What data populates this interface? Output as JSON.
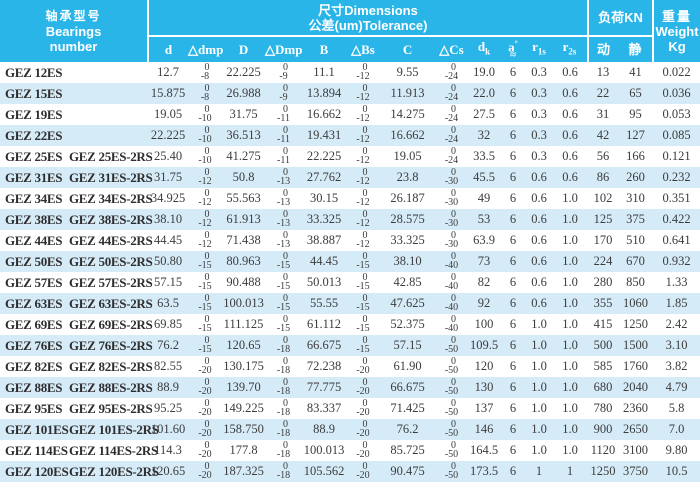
{
  "colors": {
    "header_bg": "#29b5e8",
    "row_alt_bg": "#d6ebf8",
    "text": "#3c3c3c",
    "header_text": "#ffffff"
  },
  "header": {
    "bearings": {
      "zh": "轴承型号",
      "en1": "Bearings",
      "en2": "number"
    },
    "dimensions": {
      "line1": "尺寸Dimensions",
      "line2": "公差(um)Tolerance)"
    },
    "load": {
      "label": "负荷KN",
      "dynamic": "动",
      "static": "静"
    },
    "weight": {
      "zh": "重量",
      "en": "Weight",
      "unit": "Kg"
    },
    "col_d": "d",
    "col_dmp": "△dmp",
    "col_D": "D",
    "col_Dmp": "△Dmp",
    "col_B": "B",
    "col_Bs": "△Bs",
    "col_C": "C",
    "col_Cs": "△Cs",
    "col_dk": {
      "base": "d",
      "sub": "k"
    },
    "col_a": {
      "base": "a",
      "sup": "°",
      "approx": "≈"
    },
    "col_r1s": {
      "base": "r",
      "sub": "1s"
    },
    "col_r2s": {
      "base": "r",
      "sub": "2s"
    }
  },
  "rows": [
    {
      "model": "GEZ 12ES",
      "model2": "",
      "d": "12.7",
      "dmp": [
        "0",
        "-8"
      ],
      "D": "22.225",
      "Dmp": [
        "0",
        "-9"
      ],
      "B": "11.1",
      "Bs": [
        "0",
        "-12"
      ],
      "C": "9.55",
      "Cs": [
        "0",
        "-24"
      ],
      "dk": "19.0",
      "a": "6",
      "r1s": "0.3",
      "r2s": "0.6",
      "load_dyn": "13",
      "load_stat": "41",
      "weight": "0.022"
    },
    {
      "model": "GEZ 15ES",
      "model2": "",
      "d": "15.875",
      "dmp": [
        "0",
        "-8"
      ],
      "D": "26.988",
      "Dmp": [
        "0",
        "-9"
      ],
      "B": "13.894",
      "Bs": [
        "0",
        "-12"
      ],
      "C": "11.913",
      "Cs": [
        "0",
        "-24"
      ],
      "dk": "22.0",
      "a": "6",
      "r1s": "0.3",
      "r2s": "0.6",
      "load_dyn": "22",
      "load_stat": "65",
      "weight": "0.036"
    },
    {
      "model": "GEZ 19ES",
      "model2": "",
      "d": "19.05",
      "dmp": [
        "0",
        "-10"
      ],
      "D": "31.75",
      "Dmp": [
        "0",
        "-11"
      ],
      "B": "16.662",
      "Bs": [
        "0",
        "-12"
      ],
      "C": "14.275",
      "Cs": [
        "0",
        "-24"
      ],
      "dk": "27.5",
      "a": "6",
      "r1s": "0.3",
      "r2s": "0.6",
      "load_dyn": "31",
      "load_stat": "95",
      "weight": "0.053"
    },
    {
      "model": "GEZ 22ES",
      "model2": "",
      "d": "22.225",
      "dmp": [
        "0",
        "-10"
      ],
      "D": "36.513",
      "Dmp": [
        "0",
        "-11"
      ],
      "B": "19.431",
      "Bs": [
        "0",
        "-12"
      ],
      "C": "16.662",
      "Cs": [
        "0",
        "-24"
      ],
      "dk": "32",
      "a": "6",
      "r1s": "0.3",
      "r2s": "0.6",
      "load_dyn": "42",
      "load_stat": "127",
      "weight": "0.085"
    },
    {
      "model": "GEZ 25ES",
      "model2": "GEZ 25ES-2RS",
      "d": "25.40",
      "dmp": [
        "0",
        "-10"
      ],
      "D": "41.275",
      "Dmp": [
        "0",
        "-11"
      ],
      "B": "22.225",
      "Bs": [
        "0",
        "-12"
      ],
      "C": "19.05",
      "Cs": [
        "0",
        "-24"
      ],
      "dk": "33.5",
      "a": "6",
      "r1s": "0.3",
      "r2s": "0.6",
      "load_dyn": "56",
      "load_stat": "166",
      "weight": "0.121"
    },
    {
      "model": "GEZ 31ES",
      "model2": "GEZ 31ES-2RS",
      "d": "31.75",
      "dmp": [
        "0",
        "-12"
      ],
      "D": "50.8",
      "Dmp": [
        "0",
        "-13"
      ],
      "B": "27.762",
      "Bs": [
        "0",
        "-12"
      ],
      "C": "23.8",
      "Cs": [
        "0",
        "-30"
      ],
      "dk": "45.5",
      "a": "6",
      "r1s": "0.6",
      "r2s": "0.6",
      "load_dyn": "86",
      "load_stat": "260",
      "weight": "0.232"
    },
    {
      "model": "GEZ 34ES",
      "model2": "GEZ 34ES-2RS",
      "d": "34.925",
      "dmp": [
        "0",
        "-12"
      ],
      "D": "55.563",
      "Dmp": [
        "0",
        "-13"
      ],
      "B": "30.15",
      "Bs": [
        "0",
        "-12"
      ],
      "C": "26.187",
      "Cs": [
        "0",
        "-30"
      ],
      "dk": "49",
      "a": "6",
      "r1s": "0.6",
      "r2s": "1.0",
      "load_dyn": "102",
      "load_stat": "310",
      "weight": "0.351"
    },
    {
      "model": "GEZ 38ES",
      "model2": "GEZ 38ES-2RS",
      "d": "38.10",
      "dmp": [
        "0",
        "-12"
      ],
      "D": "61.913",
      "Dmp": [
        "0",
        "-13"
      ],
      "B": "33.325",
      "Bs": [
        "0",
        "-12"
      ],
      "C": "28.575",
      "Cs": [
        "0",
        "-30"
      ],
      "dk": "53",
      "a": "6",
      "r1s": "0.6",
      "r2s": "1.0",
      "load_dyn": "125",
      "load_stat": "375",
      "weight": "0.422"
    },
    {
      "model": "GEZ 44ES",
      "model2": "GEZ 44ES-2RS",
      "d": "44.45",
      "dmp": [
        "0",
        "-12"
      ],
      "D": "71.438",
      "Dmp": [
        "0",
        "-13"
      ],
      "B": "38.887",
      "Bs": [
        "0",
        "-12"
      ],
      "C": "33.325",
      "Cs": [
        "0",
        "-30"
      ],
      "dk": "63.9",
      "a": "6",
      "r1s": "0.6",
      "r2s": "1.0",
      "load_dyn": "170",
      "load_stat": "510",
      "weight": "0.641"
    },
    {
      "model": "GEZ 50ES",
      "model2": "GEZ 50ES-2RS",
      "d": "50.80",
      "dmp": [
        "0",
        "-15"
      ],
      "D": "80.963",
      "Dmp": [
        "0",
        "-15"
      ],
      "B": "44.45",
      "Bs": [
        "0",
        "-15"
      ],
      "C": "38.10",
      "Cs": [
        "0",
        "-40"
      ],
      "dk": "73",
      "a": "6",
      "r1s": "0.6",
      "r2s": "1.0",
      "load_dyn": "224",
      "load_stat": "670",
      "weight": "0.932"
    },
    {
      "model": "GEZ 57ES",
      "model2": "GEZ 57ES-2RS",
      "d": "57.15",
      "dmp": [
        "0",
        "-15"
      ],
      "D": "90.488",
      "Dmp": [
        "0",
        "-15"
      ],
      "B": "50.013",
      "Bs": [
        "0",
        "-15"
      ],
      "C": "42.85",
      "Cs": [
        "0",
        "-40"
      ],
      "dk": "82",
      "a": "6",
      "r1s": "0.6",
      "r2s": "1.0",
      "load_dyn": "280",
      "load_stat": "850",
      "weight": "1.33"
    },
    {
      "model": "GEZ 63ES",
      "model2": "GEZ 63ES-2RS",
      "d": "63.5",
      "dmp": [
        "0",
        "-15"
      ],
      "D": "100.013",
      "Dmp": [
        "0",
        "-15"
      ],
      "B": "55.55",
      "Bs": [
        "0",
        "-15"
      ],
      "C": "47.625",
      "Cs": [
        "0",
        "-40"
      ],
      "dk": "92",
      "a": "6",
      "r1s": "0.6",
      "r2s": "1.0",
      "load_dyn": "355",
      "load_stat": "1060",
      "weight": "1.85"
    },
    {
      "model": "GEZ 69ES",
      "model2": "GEZ 69ES-2RS",
      "d": "69.85",
      "dmp": [
        "0",
        "-15"
      ],
      "D": "111.125",
      "Dmp": [
        "0",
        "-15"
      ],
      "B": "61.112",
      "Bs": [
        "0",
        "-15"
      ],
      "C": "52.375",
      "Cs": [
        "0",
        "-40"
      ],
      "dk": "100",
      "a": "6",
      "r1s": "1.0",
      "r2s": "1.0",
      "load_dyn": "415",
      "load_stat": "1250",
      "weight": "2.42"
    },
    {
      "model": "GEZ 76ES",
      "model2": "GEZ 76ES-2RS",
      "d": "76.2",
      "dmp": [
        "0",
        "-15"
      ],
      "D": "120.65",
      "Dmp": [
        "0",
        "-18"
      ],
      "B": "66.675",
      "Bs": [
        "0",
        "-15"
      ],
      "C": "57.15",
      "Cs": [
        "0",
        "-50"
      ],
      "dk": "109.5",
      "a": "6",
      "r1s": "1.0",
      "r2s": "1.0",
      "load_dyn": "500",
      "load_stat": "1500",
      "weight": "3.10"
    },
    {
      "model": "GEZ 82ES",
      "model2": "GEZ 82ES-2RS",
      "d": "82.55",
      "dmp": [
        "0",
        "-20"
      ],
      "D": "130.175",
      "Dmp": [
        "0",
        "-18"
      ],
      "B": "72.238",
      "Bs": [
        "0",
        "-20"
      ],
      "C": "61.90",
      "Cs": [
        "0",
        "-50"
      ],
      "dk": "120",
      "a": "6",
      "r1s": "1.0",
      "r2s": "1.0",
      "load_dyn": "585",
      "load_stat": "1760",
      "weight": "3.82"
    },
    {
      "model": "GEZ 88ES",
      "model2": "GEZ 88ES-2RS",
      "d": "88.9",
      "dmp": [
        "0",
        "-20"
      ],
      "D": "139.70",
      "Dmp": [
        "0",
        "-18"
      ],
      "B": "77.775",
      "Bs": [
        "0",
        "-20"
      ],
      "C": "66.675",
      "Cs": [
        "0",
        "-50"
      ],
      "dk": "130",
      "a": "6",
      "r1s": "1.0",
      "r2s": "1.0",
      "load_dyn": "680",
      "load_stat": "2040",
      "weight": "4.79"
    },
    {
      "model": "GEZ 95ES",
      "model2": "GEZ 95ES-2RS",
      "d": "95.25",
      "dmp": [
        "0",
        "-20"
      ],
      "D": "149.225",
      "Dmp": [
        "0",
        "-18"
      ],
      "B": "83.337",
      "Bs": [
        "0",
        "-20"
      ],
      "C": "71.425",
      "Cs": [
        "0",
        "-50"
      ],
      "dk": "137",
      "a": "6",
      "r1s": "1.0",
      "r2s": "1.0",
      "load_dyn": "780",
      "load_stat": "2360",
      "weight": "5.8"
    },
    {
      "model": "GEZ 101ES",
      "model2": "GEZ 101ES-2RS",
      "d": "101.60",
      "dmp": [
        "0",
        "-20"
      ],
      "D": "158.750",
      "Dmp": [
        "0",
        "-18"
      ],
      "B": "88.9",
      "Bs": [
        "0",
        "-20"
      ],
      "C": "76.2",
      "Cs": [
        "0",
        "-50"
      ],
      "dk": "146",
      "a": "6",
      "r1s": "1.0",
      "r2s": "1.0",
      "load_dyn": "900",
      "load_stat": "2650",
      "weight": "7.0"
    },
    {
      "model": "GEZ 114ES",
      "model2": "GEZ 114ES-2RS",
      "d": "114.3",
      "dmp": [
        "0",
        "-20"
      ],
      "D": "177.8",
      "Dmp": [
        "0",
        "-18"
      ],
      "B": "100.013",
      "Bs": [
        "0",
        "-20"
      ],
      "C": "85.725",
      "Cs": [
        "0",
        "-50"
      ],
      "dk": "164.5",
      "a": "6",
      "r1s": "1.0",
      "r2s": "1.0",
      "load_dyn": "1120",
      "load_stat": "3100",
      "weight": "9.80"
    },
    {
      "model": "GEZ 120ES",
      "model2": "GEZ 120ES-2RS",
      "d": "120.65",
      "dmp": [
        "0",
        "-20"
      ],
      "D": "187.325",
      "Dmp": [
        "0",
        "-18"
      ],
      "B": "105.562",
      "Bs": [
        "0",
        "-20"
      ],
      "C": "90.475",
      "Cs": [
        "0",
        "-50"
      ],
      "dk": "173.5",
      "a": "6",
      "r1s": "1",
      "r2s": "1",
      "load_dyn": "1250",
      "load_stat": "3750",
      "weight": "10.5"
    }
  ]
}
